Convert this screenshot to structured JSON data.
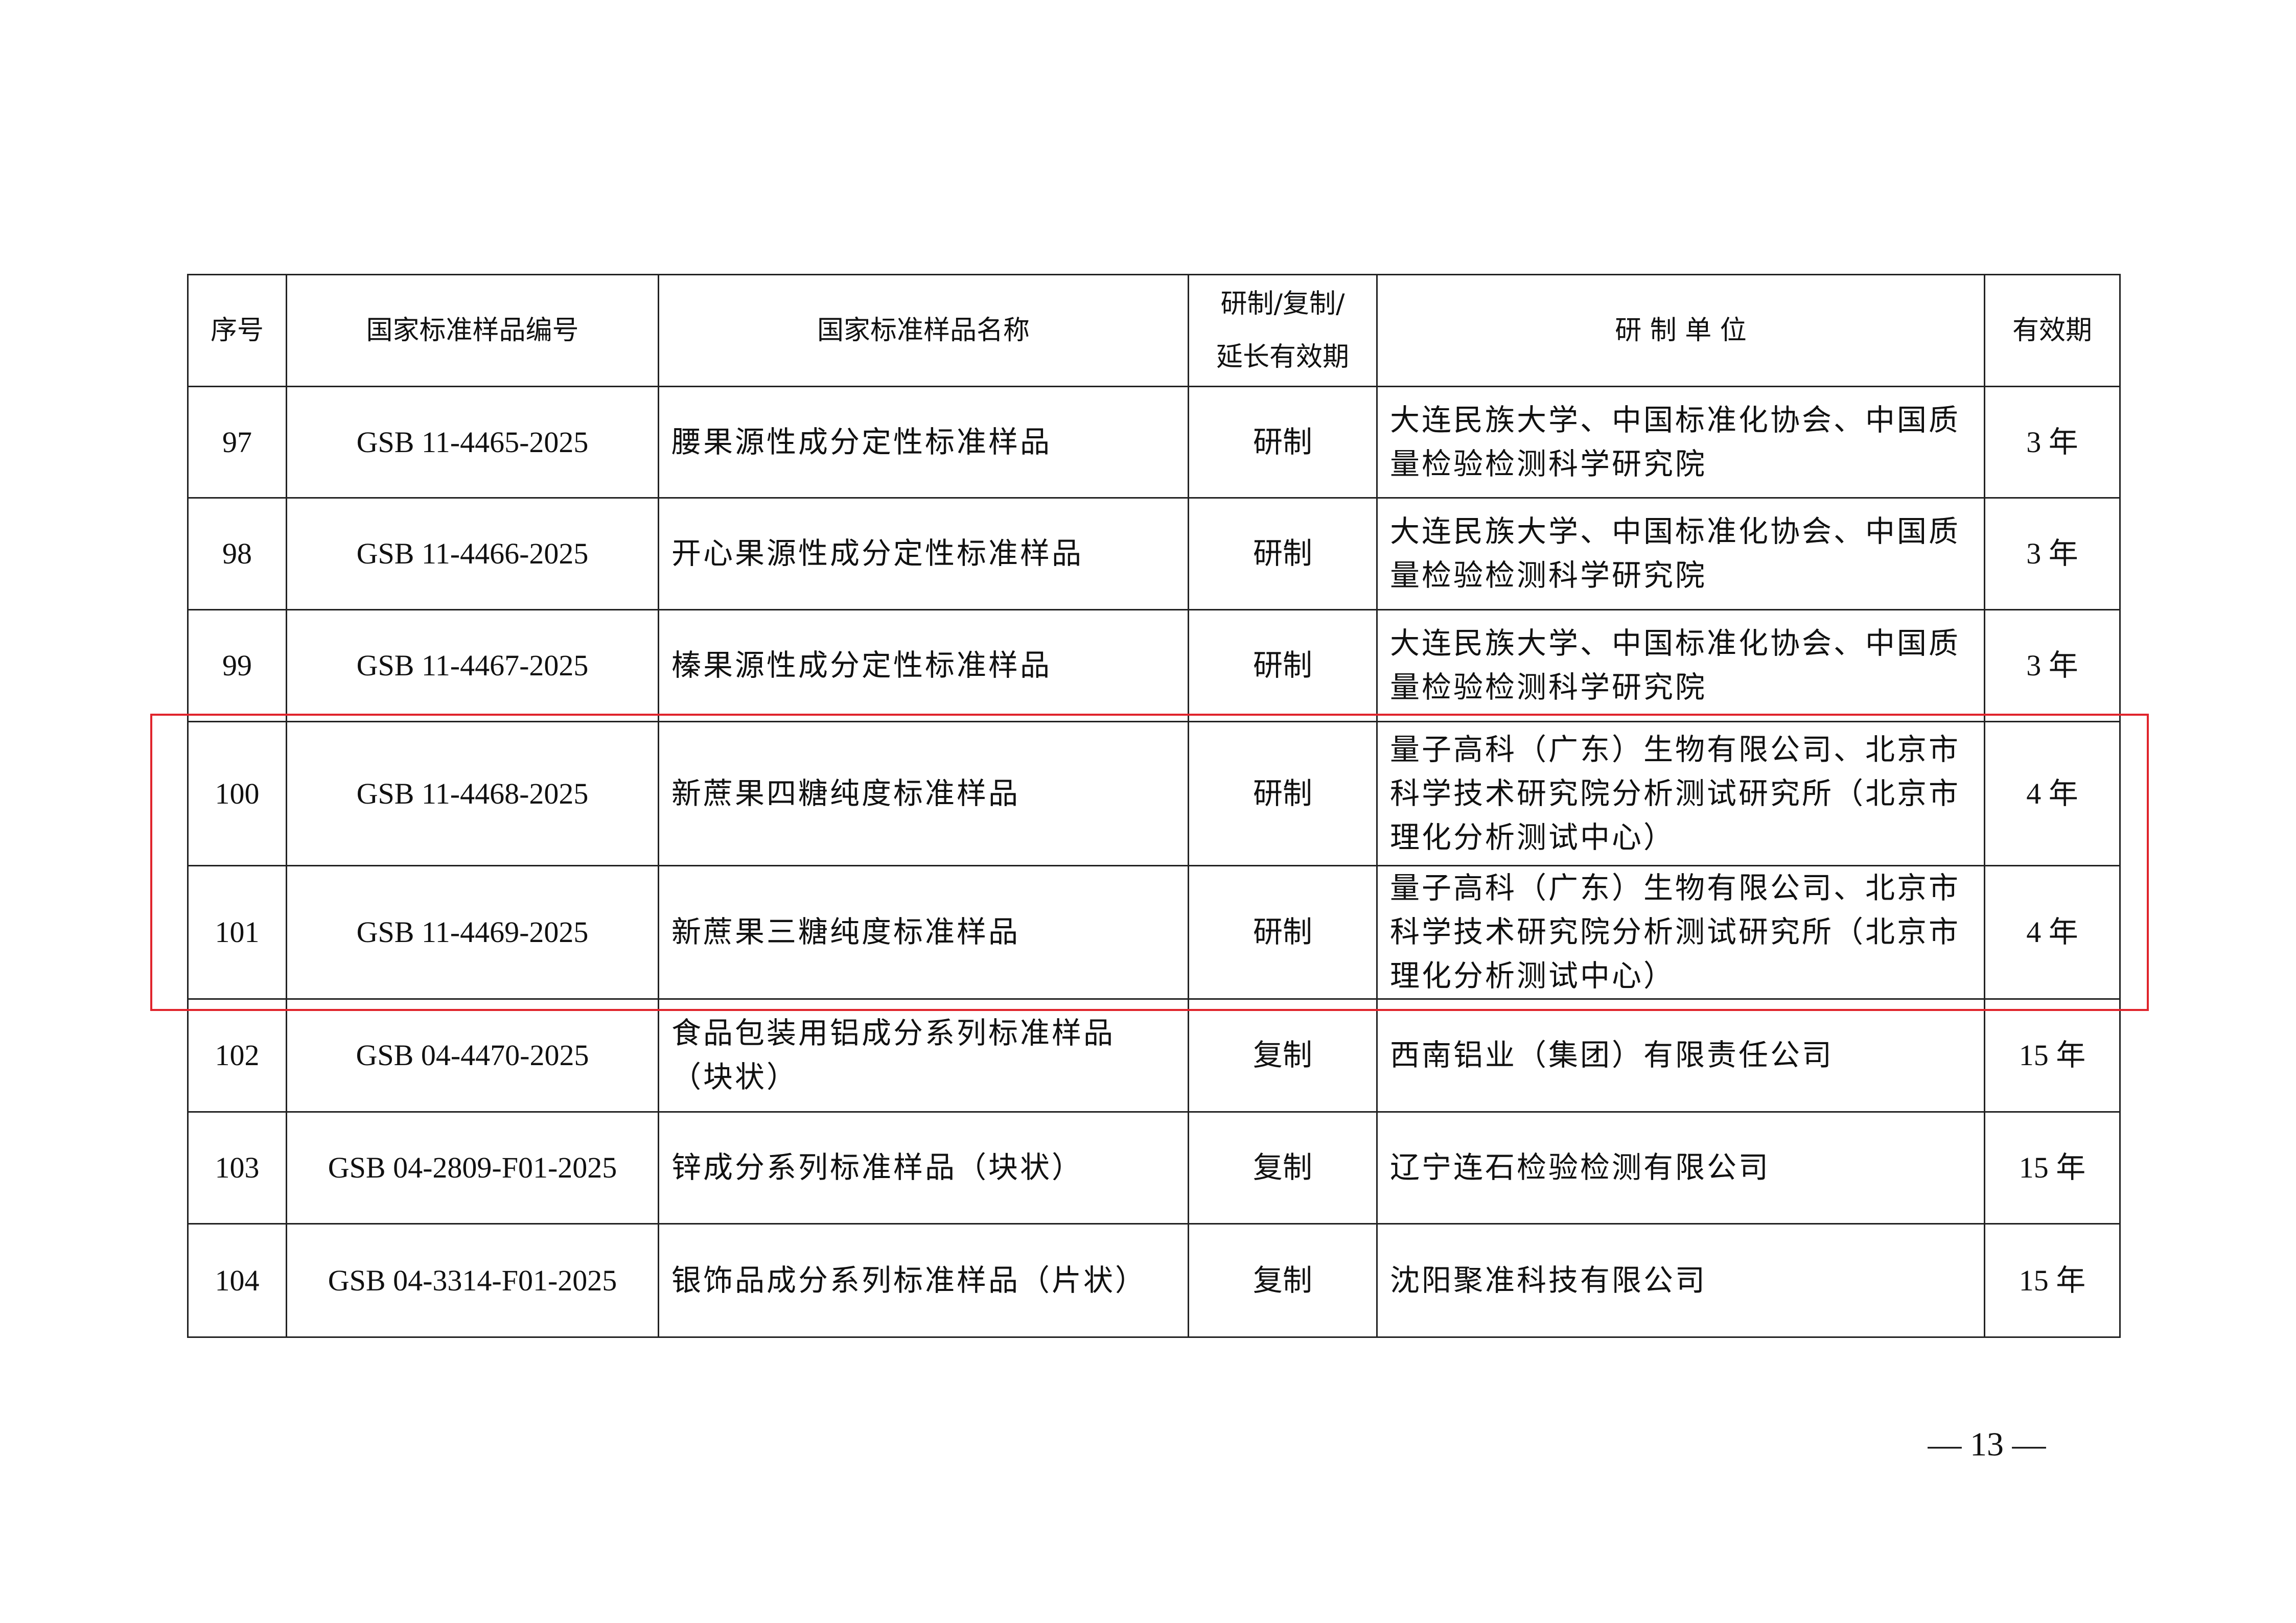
{
  "table": {
    "headers": [
      "序号",
      "国家标准样品编号",
      "国家标准样品名称",
      "研制/复制/",
      "延长有效期",
      "研 制 单 位",
      "有效期"
    ],
    "rows": [
      {
        "no": "97",
        "code": "GSB 11-4465-2025",
        "name": "腰果源性成分定性标准样品",
        "type": "研制",
        "org": "大连民族大学、中国标准化协会、中国质量检验检测科学研究院",
        "validity": "3 年"
      },
      {
        "no": "98",
        "code": "GSB 11-4466-2025",
        "name": "开心果源性成分定性标准样品",
        "type": "研制",
        "org": "大连民族大学、中国标准化协会、中国质量检验检测科学研究院",
        "validity": "3 年"
      },
      {
        "no": "99",
        "code": "GSB 11-4467-2025",
        "name": "榛果源性成分定性标准样品",
        "type": "研制",
        "org": "大连民族大学、中国标准化协会、中国质量检验检测科学研究院",
        "validity": "3 年"
      },
      {
        "no": "100",
        "code": "GSB 11-4468-2025",
        "name": "新蔗果四糖纯度标准样品",
        "type": "研制",
        "org": "量子高科（广东）生物有限公司、北京市科学技术研究院分析测试研究所（北京市理化分析测试中心）",
        "validity": "4 年"
      },
      {
        "no": "101",
        "code": "GSB 11-4469-2025",
        "name": "新蔗果三糖纯度标准样品",
        "type": "研制",
        "org": "量子高科（广东）生物有限公司、北京市科学技术研究院分析测试研究所（北京市理化分析测试中心）",
        "validity": "4 年"
      },
      {
        "no": "102",
        "code": "GSB 04-4470-2025",
        "name": "食品包装用铝成分系列标准样品（块状）",
        "type": "复制",
        "org": "西南铝业（集团）有限责任公司",
        "validity": "15 年"
      },
      {
        "no": "103",
        "code": "GSB 04-2809-F01-2025",
        "name": "锌成分系列标准样品（块状）",
        "type": "复制",
        "org": "辽宁连石检验检测有限公司",
        "validity": "15 年"
      },
      {
        "no": "104",
        "code": "GSB 04-3314-F01-2025",
        "name": "银饰品成分系列标准样品（片状）",
        "type": "复制",
        "org": "沈阳聚准科技有限公司",
        "validity": "15 年"
      }
    ]
  },
  "highlight_color": "#e0242c",
  "page_number": "— 13 —"
}
